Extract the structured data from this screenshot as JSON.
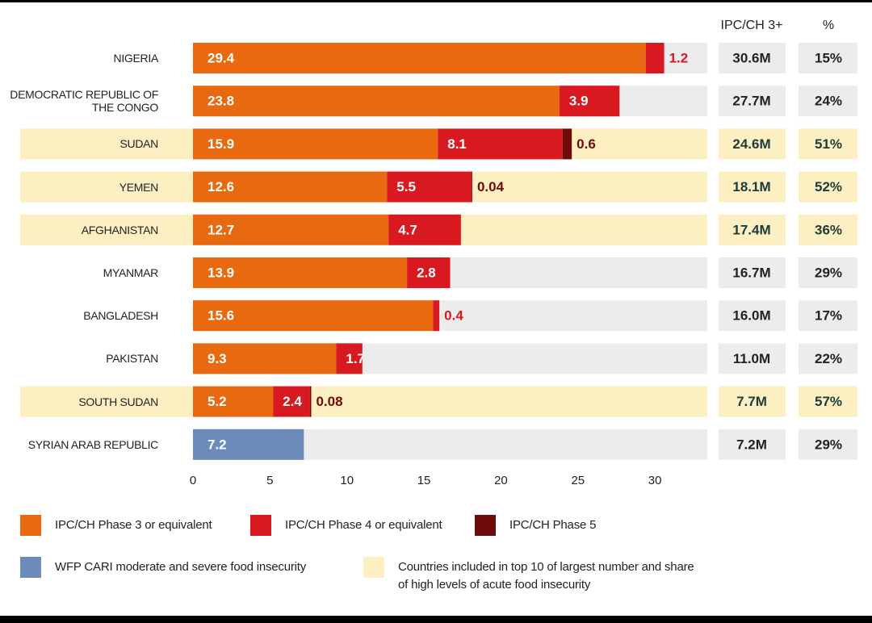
{
  "chart_data": {
    "type": "stacked-bar-horizontal",
    "categories": [
      "NIGERIA",
      "DEMOCRATIC REPUBLIC OF THE CONGO",
      "SUDAN",
      "YEMEN",
      "AFGHANISTAN",
      "MYANMAR",
      "BANGLADESH",
      "PAKISTAN",
      "SOUTH SUDAN",
      "SYRIAN ARAB REPUBLIC"
    ],
    "series": [
      {
        "name": "IPC/CH Phase 3 or equivalent",
        "color": "#e8690f",
        "values": [
          29.4,
          23.8,
          15.9,
          12.6,
          12.7,
          13.9,
          15.6,
          9.3,
          5.2,
          null
        ]
      },
      {
        "name": "IPC/CH Phase 4 or equivalent",
        "color": "#d81920",
        "values": [
          1.2,
          3.9,
          8.1,
          5.5,
          4.7,
          2.8,
          0.4,
          1.7,
          2.4,
          null
        ]
      },
      {
        "name": "IPC/CH Phase 5",
        "color": "#6e0b0b",
        "values": [
          null,
          null,
          0.6,
          0.04,
          null,
          null,
          null,
          null,
          0.08,
          null
        ]
      },
      {
        "name": "WFP CARI moderate and severe food insecurity",
        "color": "#6b8cbb",
        "values": [
          null,
          null,
          null,
          null,
          null,
          null,
          null,
          null,
          null,
          7.2
        ]
      }
    ],
    "xlim": [
      0,
      33.4
    ],
    "xticks": [
      0,
      5,
      10,
      15,
      20,
      25,
      30
    ],
    "highlighted": [
      false,
      false,
      true,
      true,
      true,
      false,
      false,
      false,
      true,
      false
    ],
    "highlight_color": "#fcefc2",
    "highlight_legend": "Countries included in top 10 of largest number and share of high levels of acute food insecurity",
    "totals": {
      "header": "IPC/CH 3+",
      "values": [
        30.6,
        27.7,
        24.6,
        18.1,
        17.4,
        16.7,
        16.0,
        11.0,
        7.7,
        7.2
      ],
      "value_labels": [
        "30.6M",
        "27.7M",
        "24.6M",
        "18.1M",
        "17.4M",
        "16.7M",
        "16.0M",
        "11.0M",
        "7.7M",
        "7.2M"
      ]
    },
    "share": {
      "header": "%",
      "values": [
        15,
        24,
        51,
        52,
        36,
        29,
        17,
        22,
        57,
        29
      ],
      "value_labels": [
        "15%",
        "24%",
        "51%",
        "52%",
        "36%",
        "29%",
        "17%",
        "22%",
        "57%",
        "29%"
      ]
    }
  }
}
